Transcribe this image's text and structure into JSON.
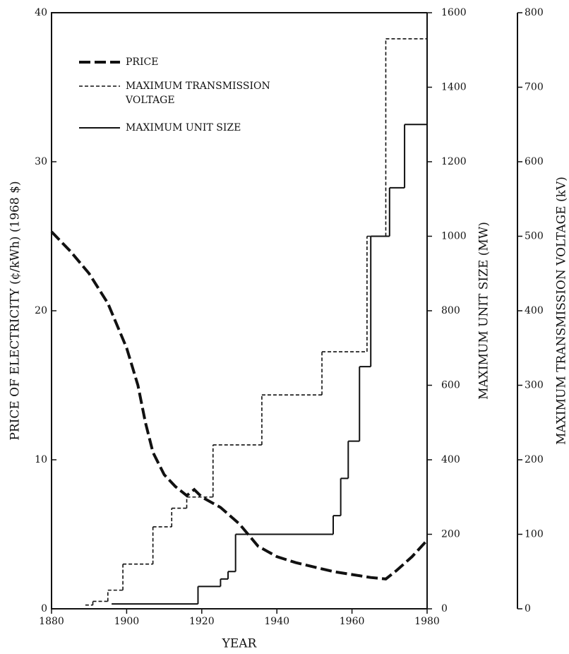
{
  "chart_data": {
    "type": "line",
    "xlabel": "YEAR",
    "ylabel": "PRICE OF ELECTRICITY (¢/kWh) (1968 $)",
    "y2label": "MAXIMUM UNIT SIZE (MW)",
    "y3label": "MAXIMUM TRANSMISSION VOLTAGE (kV)",
    "xlim": [
      1880,
      1980
    ],
    "xticks": [
      1880,
      1900,
      1920,
      1940,
      1960,
      1980
    ],
    "ylim": [
      0,
      40
    ],
    "yticks": [
      0,
      10,
      20,
      30,
      40
    ],
    "y2lim": [
      0,
      1600
    ],
    "y2ticks": [
      0,
      200,
      400,
      600,
      800,
      1000,
      1200,
      1400,
      1600
    ],
    "y3lim": [
      0,
      800
    ],
    "y3ticks": [
      0,
      100,
      200,
      300,
      400,
      500,
      600,
      700,
      800
    ],
    "series": [
      {
        "name": "PRICE",
        "color": "#111111",
        "style": "thick-dash",
        "x": [
          1880,
          1885,
          1890,
          1895,
          1900,
          1903,
          1905,
          1907,
          1910,
          1913,
          1916,
          1918,
          1920,
          1925,
          1930,
          1935,
          1940,
          1945,
          1950,
          1955,
          1960,
          1965,
          1969,
          1972,
          1976,
          1980
        ],
        "values": [
          25.3,
          24,
          22.5,
          20.5,
          17.5,
          15,
          12.5,
          10.5,
          9,
          8.2,
          7.6,
          8,
          7.5,
          6.8,
          5.7,
          4.2,
          3.5,
          3.1,
          2.8,
          2.5,
          2.3,
          2.1,
          2.0,
          2.6,
          3.5,
          4.6
        ]
      },
      {
        "name": "MAXIMUM TRANSMISSION VOLTAGE",
        "color": "#111111",
        "style": "thin-dash",
        "axis": "y3",
        "step": true,
        "x": [
          1889,
          1891,
          1895,
          1899,
          1907,
          1912,
          1916,
          1923,
          1936,
          1952,
          1964,
          1969
        ],
        "values": [
          5,
          10,
          25,
          60,
          110,
          135,
          150,
          220,
          287,
          345,
          500,
          765
        ]
      },
      {
        "name": "MAXIMUM UNIT SIZE",
        "color": "#111111",
        "style": "solid",
        "axis": "y2",
        "step": true,
        "x": [
          1896,
          1919,
          1925,
          1927,
          1929,
          1955,
          1957,
          1959,
          1962,
          1965,
          1970,
          1974
        ],
        "values": [
          13,
          60,
          80,
          100,
          200,
          250,
          350,
          450,
          650,
          1000,
          1130,
          1300
        ]
      }
    ]
  }
}
